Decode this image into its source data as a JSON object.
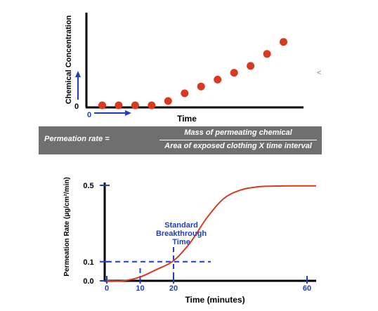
{
  "chart_data": [
    {
      "type": "scatter",
      "ylabel": "Chemical Concentration",
      "xlabel": "Time",
      "x_tick": "0",
      "y_tick": "0",
      "x": [
        1,
        2,
        3,
        4,
        5,
        6,
        7,
        8,
        9,
        10,
        11,
        12
      ],
      "y": [
        0,
        0,
        0,
        0,
        0.05,
        0.14,
        0.22,
        0.3,
        0.38,
        0.46,
        0.6,
        0.74
      ],
      "ylim": [
        0,
        1
      ],
      "xlim": [
        0,
        13
      ],
      "point_color": "#d93a1f",
      "arrow_color": "#1f3fbf"
    },
    {
      "type": "line",
      "ylabel": "Permeation Rate (µg/cm²/min)",
      "xlabel": "Time (minutes)",
      "x_ticks": [
        "0",
        "10",
        "20",
        "60"
      ],
      "y_ticks": [
        "0.0",
        "0.1",
        "0.5"
      ],
      "annotation": [
        "Standard",
        "Breakthrough",
        "Time"
      ],
      "x": [
        0,
        5,
        10,
        15,
        20,
        25,
        30,
        35,
        40,
        45,
        50,
        55,
        60
      ],
      "y": [
        0,
        0,
        0.02,
        0.06,
        0.105,
        0.2,
        0.33,
        0.43,
        0.475,
        0.492,
        0.496,
        0.497,
        0.497
      ],
      "xlim": [
        0,
        60
      ],
      "ylim": [
        0,
        0.5
      ],
      "reference_lines": {
        "x": [
          10,
          20
        ],
        "y": 0.1
      },
      "curve_color": "#d93a1f",
      "annotation_color": "#1f3fbf"
    }
  ],
  "formula": {
    "lhs": "Permeation rate =",
    "numerator": "Mass of permeating chemical",
    "denominator": "Area of exposed clothing X time interval"
  },
  "stray_mark": "<"
}
